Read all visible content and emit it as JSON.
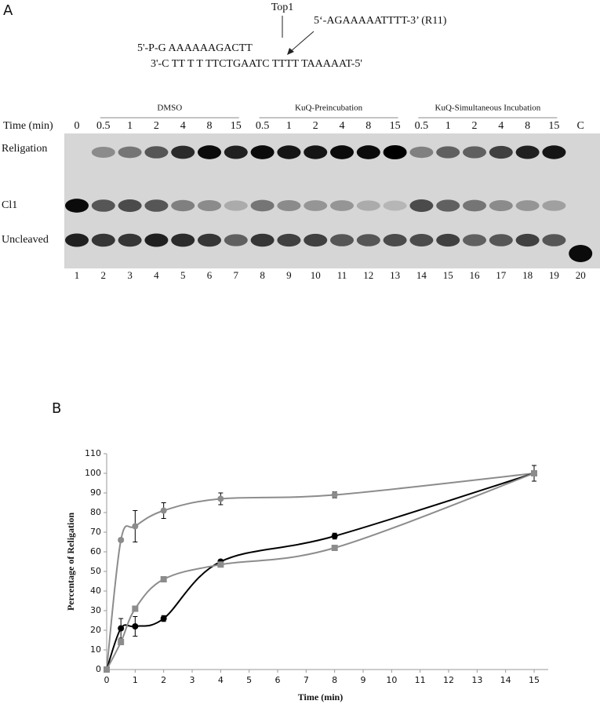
{
  "panel_a": {
    "label": "A",
    "enzyme": "Top1",
    "oligo": "5‘-AGAAAAATTTT-3’ (R11)",
    "strand_top": "5'-P-G AAAAAAGACTT",
    "strand_bottom": "3'-C TT T T TTCTGAATC TTTT TAAAAAT-5'",
    "groups": [
      "DMSO",
      "KuQ-Preincubation",
      "KuQ-Simultaneous Incubation"
    ],
    "time_label": "Time (min)",
    "times": [
      "0",
      "0.5",
      "1",
      "2",
      "4",
      "8",
      "15",
      "0.5",
      "1",
      "2",
      "4",
      "8",
      "15",
      "0.5",
      "1",
      "2",
      "4",
      "8",
      "15",
      "C"
    ],
    "rows": [
      "Religation",
      "Cl1",
      "Uncleaved"
    ],
    "lanes": [
      "1",
      "2",
      "3",
      "4",
      "5",
      "6",
      "7",
      "8",
      "9",
      "10",
      "11",
      "12",
      "13",
      "14",
      "15",
      "16",
      "17",
      "18",
      "19",
      "20"
    ]
  },
  "panel_b": {
    "label": "B"
  },
  "chart_data": {
    "type": "line",
    "xlabel": "Time (min)",
    "ylabel": "Percentage of Religation",
    "x": [
      0,
      0.5,
      1,
      2,
      4,
      8,
      15
    ],
    "series": [
      {
        "color": "#8c8c8c",
        "marker": "circle",
        "values": [
          0,
          66,
          73,
          81,
          87,
          89,
          100
        ],
        "errors": [
          0,
          1,
          8,
          4,
          3,
          1.5,
          4
        ]
      },
      {
        "color": "#000000",
        "marker": "circle",
        "values": [
          0,
          21,
          22,
          26,
          55,
          68,
          100
        ],
        "errors": [
          0,
          5,
          5,
          1.5,
          1,
          1.5,
          4
        ]
      },
      {
        "color": "#8c8c8c",
        "marker": "square",
        "values": [
          0,
          14,
          31,
          46,
          53.5,
          62,
          100
        ],
        "errors": [
          0,
          1,
          1,
          1,
          1,
          1,
          4
        ]
      }
    ],
    "xlim": [
      0,
      15
    ],
    "xticks": [
      0,
      1,
      2,
      3,
      4,
      5,
      6,
      7,
      8,
      9,
      10,
      11,
      12,
      13,
      14,
      15
    ],
    "ylim": [
      0,
      110
    ],
    "yticks": [
      0,
      10,
      20,
      30,
      40,
      50,
      60,
      70,
      80,
      90,
      100,
      110
    ]
  }
}
